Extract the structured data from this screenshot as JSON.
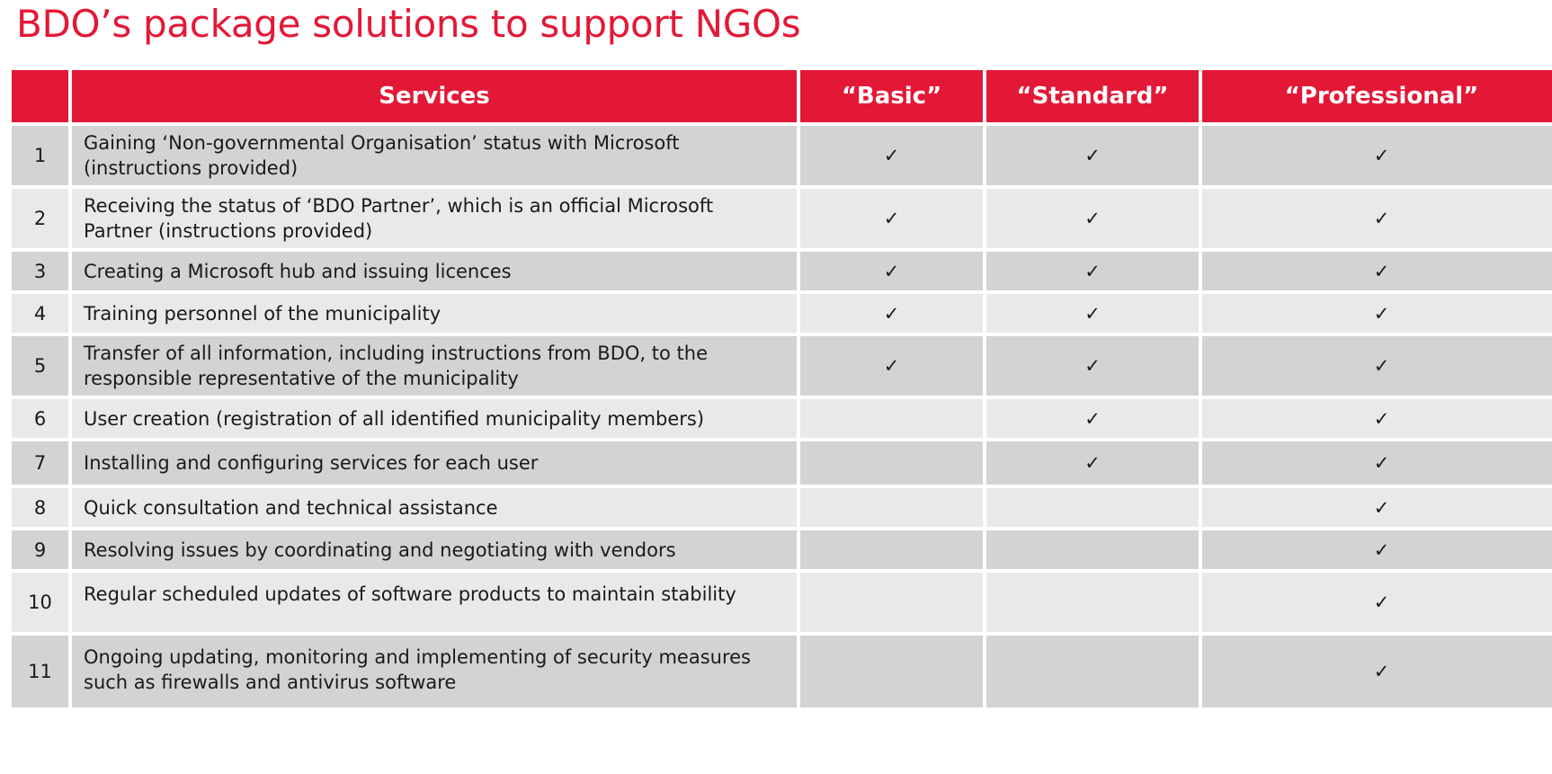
{
  "title": "BDO’s package solutions to support NGOs",
  "columns": {
    "number": "",
    "services": "Services",
    "basic": "“Basic”",
    "standard": "“Standard”",
    "professional": "“Professional”"
  },
  "check_symbol": "✓",
  "rows": [
    {
      "num": "1",
      "service": "Gaining ‘Non-governmental Organisation’ status with Microsoft (instructions provided)",
      "basic": "✓",
      "standard": "✓",
      "professional": "✓"
    },
    {
      "num": "2",
      "service": "Receiving the status of ‘BDO Partner’, which is an official Microsoft Partner (instructions provided)",
      "basic": "✓",
      "standard": "✓",
      "professional": "✓"
    },
    {
      "num": "3",
      "service": "Creating a Microsoft hub and issuing licences",
      "basic": "✓",
      "standard": "✓",
      "professional": "✓"
    },
    {
      "num": "4",
      "service": "Training personnel of the municipality",
      "basic": "✓",
      "standard": "✓",
      "professional": "✓"
    },
    {
      "num": "5",
      "service": "Transfer of all information, including instructions from BDO, to the responsible representative of the municipality",
      "basic": "✓",
      "standard": "✓",
      "professional": "✓"
    },
    {
      "num": "6",
      "service": "User creation (registration of all identified municipality members)",
      "basic": "",
      "standard": "✓",
      "professional": "✓"
    },
    {
      "num": "7",
      "service": "Installing and configuring services for each user",
      "basic": "",
      "standard": "✓",
      "professional": "✓"
    },
    {
      "num": "8",
      "service": "Quick consultation and technical assistance",
      "basic": "",
      "standard": "",
      "professional": "✓"
    },
    {
      "num": "9",
      "service": "Resolving issues by coordinating and negotiating with vendors",
      "basic": "",
      "standard": "",
      "professional": "✓"
    },
    {
      "num": "10",
      "service": "Regular scheduled updates of software products to maintain stability",
      "basic": "",
      "standard": "",
      "professional": "✓"
    },
    {
      "num": "11",
      "service": "Ongoing updating, monitoring and implementing of security measures such as firewalls and antivirus software",
      "basic": "",
      "standard": "",
      "professional": "✓"
    }
  ]
}
